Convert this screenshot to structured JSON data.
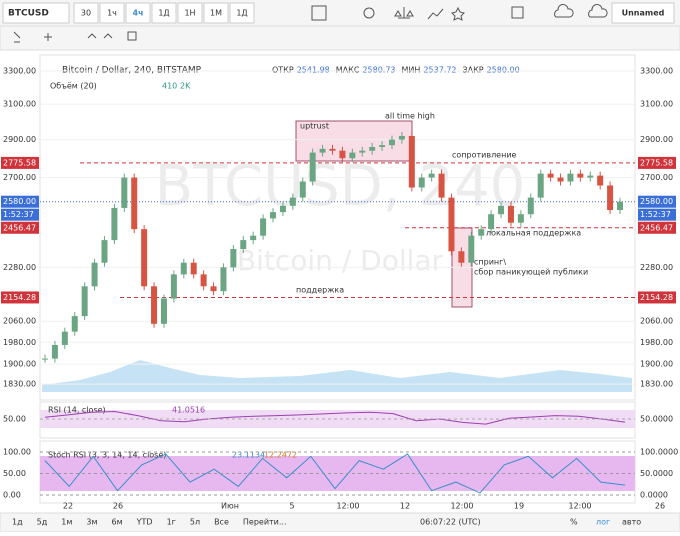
{
  "toolbar": {
    "symbol": "BTCUSD",
    "intervals": [
      "30",
      "1ч",
      "4ч",
      "1Д",
      "1Н",
      "1М",
      "1Д"
    ],
    "active_interval": 2,
    "layout_name": "Unnamed"
  },
  "legend": {
    "title": "Bitcoin / Dollar, 240, BITSTAMP",
    "ohlc": [
      {
        "label": "ОТКР",
        "value": "2541.98"
      },
      {
        "label": "МАКС",
        "value": "2580.73"
      },
      {
        "label": "МИН",
        "value": "2537.72"
      },
      {
        "label": "ЗАКР",
        "value": "2580.00"
      }
    ],
    "volume_label": "Объём (20)",
    "volume_values": [
      "410",
      "2K"
    ]
  },
  "watermark": {
    "symbol": "BTCUSD, 240",
    "description": "Bitcoin / Dollar"
  },
  "annotations": {
    "uptrust": "uptrust",
    "ath": "all time high",
    "resistance": "сопротивление",
    "local_support": "локальная поддержка",
    "spring1": "спринг\\",
    "spring2": "сбор паникующей публики",
    "support": "поддержка"
  },
  "chart": {
    "ylim": [
      1776,
      3401
    ],
    "log": true,
    "price_ticks": [
      {
        "value": 3300,
        "label": "3300.00"
      },
      {
        "value": 3100,
        "label": "3100.00"
      },
      {
        "value": 2900,
        "label": "2900.00"
      },
      {
        "value": 2700,
        "label": "2700.00"
      },
      {
        "value": 2280,
        "label": "2280.00"
      },
      {
        "value": 2060,
        "label": "2060.00"
      },
      {
        "value": 1980,
        "label": "1980.00"
      },
      {
        "value": 1900,
        "label": "1900.00"
      },
      {
        "value": 1830,
        "label": "1830.00"
      }
    ],
    "levels": [
      {
        "value": 2775.58,
        "label": "2775.58",
        "color": "#d0343a"
      },
      {
        "value": 2456.47,
        "label": "2456.47",
        "color": "#d0343a"
      },
      {
        "value": 2154.28,
        "label": "2154.28",
        "color": "#d0343a"
      }
    ],
    "current": {
      "value": 2580,
      "label": "2580.00",
      "countdown": "1:52:37",
      "color": "#3a6fd8"
    },
    "up_color": "#6ba583",
    "down_color": "#d75442",
    "closes": [
      1920,
      1970,
      2020,
      2080,
      2200,
      2300,
      2400,
      2550,
      2700,
      2450,
      2200,
      2050,
      2150,
      2250,
      2300,
      2250,
      2200,
      2180,
      2280,
      2360,
      2400,
      2420,
      2500,
      2530,
      2560,
      2600,
      2680,
      2830,
      2850,
      2840,
      2800,
      2830,
      2840,
      2860,
      2870,
      2900,
      2920,
      2650,
      2700,
      2720,
      2600,
      2350,
      2300,
      2420,
      2450,
      2520,
      2560,
      2480,
      2520,
      2600,
      2720,
      2700,
      2680,
      2720,
      2700,
      2710,
      2660,
      2540,
      2580
    ]
  },
  "rsi": {
    "title": "RSI (14, close)",
    "last": "41.0516",
    "level": {
      "value": 50,
      "label": "50.0000",
      "left_label": "50.00"
    },
    "ylim": [
      0,
      100
    ],
    "values": [
      55,
      62,
      70,
      72,
      60,
      45,
      42,
      50,
      55,
      58,
      60,
      62,
      65,
      68,
      70,
      66,
      45,
      50,
      40,
      35,
      52,
      56,
      60,
      58,
      50,
      41
    ]
  },
  "stoch": {
    "title": "Stoch RSI (3, 3, 14, 14, close)",
    "k": "23.1134",
    "d": "12.2472",
    "ylim": [
      0,
      100
    ],
    "ticks": [
      {
        "value": 100,
        "label": "100.0000",
        "left_label": "100.00"
      },
      {
        "value": 50,
        "label": "50.0000",
        "left_label": "50.00"
      },
      {
        "value": 0,
        "label": "0.0000",
        "left_label": "0.00"
      }
    ],
    "values": [
      80,
      20,
      90,
      10,
      70,
      95,
      30,
      60,
      20,
      85,
      40,
      90,
      15,
      80,
      60,
      95,
      10,
      30,
      5,
      70,
      90,
      40,
      85,
      30,
      23
    ]
  },
  "time_axis": [
    "22",
    "26",
    "Июн",
    "5",
    "12:00",
    "12",
    "12:00",
    "19",
    "12:00",
    "26"
  ],
  "bottom_bar": {
    "ranges": [
      "1д",
      "5д",
      "1м",
      "3м",
      "6м",
      "YTD",
      "1г",
      "5л",
      "Все",
      "Перейти..."
    ],
    "clock": "06:07:22 (UTC)",
    "options": [
      "%",
      "лог",
      "авто"
    ]
  }
}
